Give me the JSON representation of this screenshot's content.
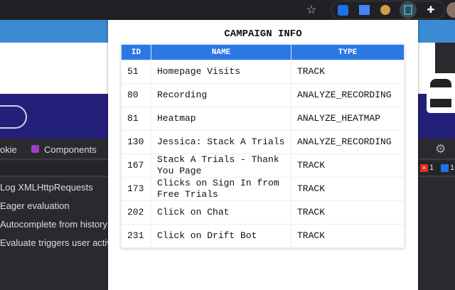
{
  "browser": {
    "icons": [
      "star-icon",
      "extension-blue-icon",
      "extension-sidebar-icon",
      "cookie-icon",
      "extension-campaign-icon",
      "puzzle-icon",
      "profile-avatar"
    ]
  },
  "devtools": {
    "tabs": [
      {
        "label": "okie"
      },
      {
        "label": "Components"
      }
    ],
    "options": [
      "Log XMLHttpRequests",
      "Eager evaluation",
      "Autocomplete from history",
      "Evaluate triggers user activat"
    ],
    "error_count": "1",
    "message_count": "1"
  },
  "popup": {
    "title": "CAMPAIGN INFO",
    "columns": [
      "ID",
      "NAME",
      "TYPE"
    ],
    "rows": [
      {
        "id": "51",
        "name": "Homepage Visits",
        "type": "TRACK"
      },
      {
        "id": "80",
        "name": "Recording",
        "type": "ANALYZE_RECORDING"
      },
      {
        "id": "81",
        "name": "Heatmap",
        "type": "ANALYZE_HEATMAP"
      },
      {
        "id": "130",
        "name": "Jessica: Stack A Trials",
        "type": "ANALYZE_RECORDING"
      },
      {
        "id": "167",
        "name": "Stack A Trials - Thank You Page",
        "type": "TRACK"
      },
      {
        "id": "173",
        "name": "Clicks on Sign In from Free Trials",
        "type": "TRACK"
      },
      {
        "id": "202",
        "name": "Click on Chat",
        "type": "TRACK"
      },
      {
        "id": "231",
        "name": "Click on Drift Bot",
        "type": "TRACK"
      }
    ]
  },
  "colors": {
    "header": "#2b78e4",
    "navy": "#24207a",
    "blue": "#3b8bd4"
  }
}
